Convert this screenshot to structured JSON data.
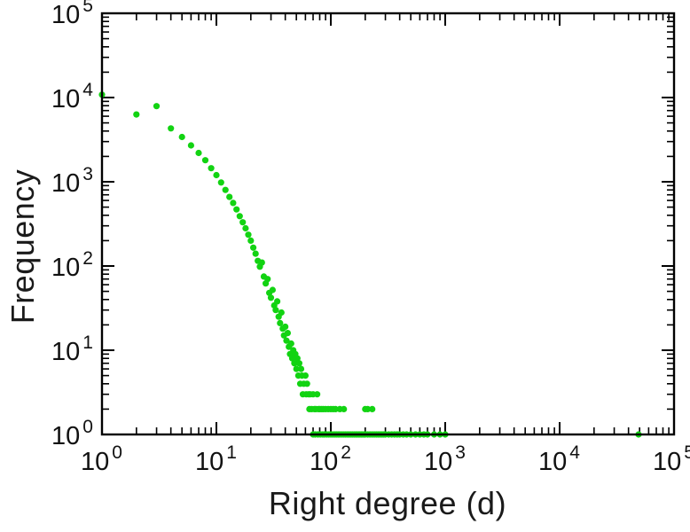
{
  "page": {
    "background": "#ffffff"
  },
  "chart_data": {
    "type": "scatter",
    "title": "",
    "xlabel": "Right degree (d)",
    "ylabel": "Frequency",
    "xscale": "log",
    "yscale": "log",
    "xlim": [
      1,
      100000
    ],
    "ylim": [
      1,
      100000
    ],
    "grid": false,
    "legend": "none",
    "tick_label_base": "10",
    "x_tick_exponents": [
      0,
      1,
      2,
      3,
      4,
      5
    ],
    "y_tick_exponents": [
      0,
      1,
      2,
      3,
      4,
      5
    ],
    "marker_color": "#12d312",
    "frame_color": "#000000",
    "marker_radius": 3.6,
    "points": [
      [
        1,
        10800
      ],
      [
        2,
        6300
      ],
      [
        3,
        7900
      ],
      [
        4,
        4300
      ],
      [
        5,
        3400
      ],
      [
        6,
        2700
      ],
      [
        7,
        2200
      ],
      [
        8,
        1800
      ],
      [
        9,
        1450
      ],
      [
        10,
        1200
      ],
      [
        11,
        980
      ],
      [
        12,
        800
      ],
      [
        13,
        660
      ],
      [
        14,
        560
      ],
      [
        15,
        470
      ],
      [
        16,
        390
      ],
      [
        17,
        330
      ],
      [
        18,
        280
      ],
      [
        19,
        235
      ],
      [
        20,
        200
      ],
      [
        21,
        165
      ],
      [
        22,
        140
      ],
      [
        23,
        115
      ],
      [
        24,
        98
      ],
      [
        25,
        110
      ],
      [
        26,
        75
      ],
      [
        27,
        62
      ],
      [
        28,
        70
      ],
      [
        29,
        48
      ],
      [
        30,
        42
      ],
      [
        31,
        52
      ],
      [
        32,
        34
      ],
      [
        33,
        30
      ],
      [
        34,
        38
      ],
      [
        35,
        25
      ],
      [
        36,
        21
      ],
      [
        37,
        28
      ],
      [
        38,
        18
      ],
      [
        39,
        15
      ],
      [
        40,
        19
      ],
      [
        41,
        13
      ],
      [
        42,
        16
      ],
      [
        43,
        11
      ],
      [
        44,
        9
      ],
      [
        45,
        12
      ],
      [
        46,
        8
      ],
      [
        47,
        10
      ],
      [
        48,
        7
      ],
      [
        49,
        9
      ],
      [
        50,
        6
      ],
      [
        51,
        8
      ],
      [
        52,
        5
      ],
      [
        53,
        7
      ],
      [
        54,
        4
      ],
      [
        55,
        6
      ],
      [
        56,
        5
      ],
      [
        57,
        3
      ],
      [
        58,
        4
      ],
      [
        60,
        5
      ],
      [
        61,
        3
      ],
      [
        62,
        4
      ],
      [
        64,
        3
      ],
      [
        65,
        2
      ],
      [
        66,
        3
      ],
      [
        68,
        2
      ],
      [
        70,
        3
      ],
      [
        72,
        2
      ],
      [
        74,
        2
      ],
      [
        76,
        3
      ],
      [
        78,
        2
      ],
      [
        80,
        2
      ],
      [
        83,
        2
      ],
      [
        86,
        2
      ],
      [
        90,
        2
      ],
      [
        95,
        2
      ],
      [
        100,
        2
      ],
      [
        105,
        2
      ],
      [
        110,
        2
      ],
      [
        120,
        2
      ],
      [
        130,
        2
      ],
      [
        200,
        2
      ],
      [
        210,
        2
      ],
      [
        230,
        2
      ],
      [
        70,
        1
      ],
      [
        73,
        1
      ],
      [
        77,
        1
      ],
      [
        81,
        1
      ],
      [
        85,
        1
      ],
      [
        88,
        1
      ],
      [
        92,
        1
      ],
      [
        96,
        1
      ],
      [
        100,
        1
      ],
      [
        104,
        1
      ],
      [
        108,
        1
      ],
      [
        112,
        1
      ],
      [
        116,
        1
      ],
      [
        120,
        1
      ],
      [
        125,
        1
      ],
      [
        130,
        1
      ],
      [
        135,
        1
      ],
      [
        140,
        1
      ],
      [
        145,
        1
      ],
      [
        150,
        1
      ],
      [
        155,
        1
      ],
      [
        160,
        1
      ],
      [
        165,
        1
      ],
      [
        170,
        1
      ],
      [
        175,
        1
      ],
      [
        180,
        1
      ],
      [
        185,
        1
      ],
      [
        190,
        1
      ],
      [
        195,
        1
      ],
      [
        200,
        1
      ],
      [
        210,
        1
      ],
      [
        220,
        1
      ],
      [
        230,
        1
      ],
      [
        240,
        1
      ],
      [
        250,
        1
      ],
      [
        260,
        1
      ],
      [
        270,
        1
      ],
      [
        280,
        1
      ],
      [
        290,
        1
      ],
      [
        300,
        1
      ],
      [
        320,
        1
      ],
      [
        340,
        1
      ],
      [
        360,
        1
      ],
      [
        380,
        1
      ],
      [
        400,
        1
      ],
      [
        430,
        1
      ],
      [
        460,
        1
      ],
      [
        500,
        1
      ],
      [
        550,
        1
      ],
      [
        600,
        1
      ],
      [
        650,
        1
      ],
      [
        700,
        1
      ],
      [
        800,
        1
      ],
      [
        900,
        1
      ],
      [
        1000,
        1
      ],
      [
        49000,
        1
      ]
    ]
  }
}
